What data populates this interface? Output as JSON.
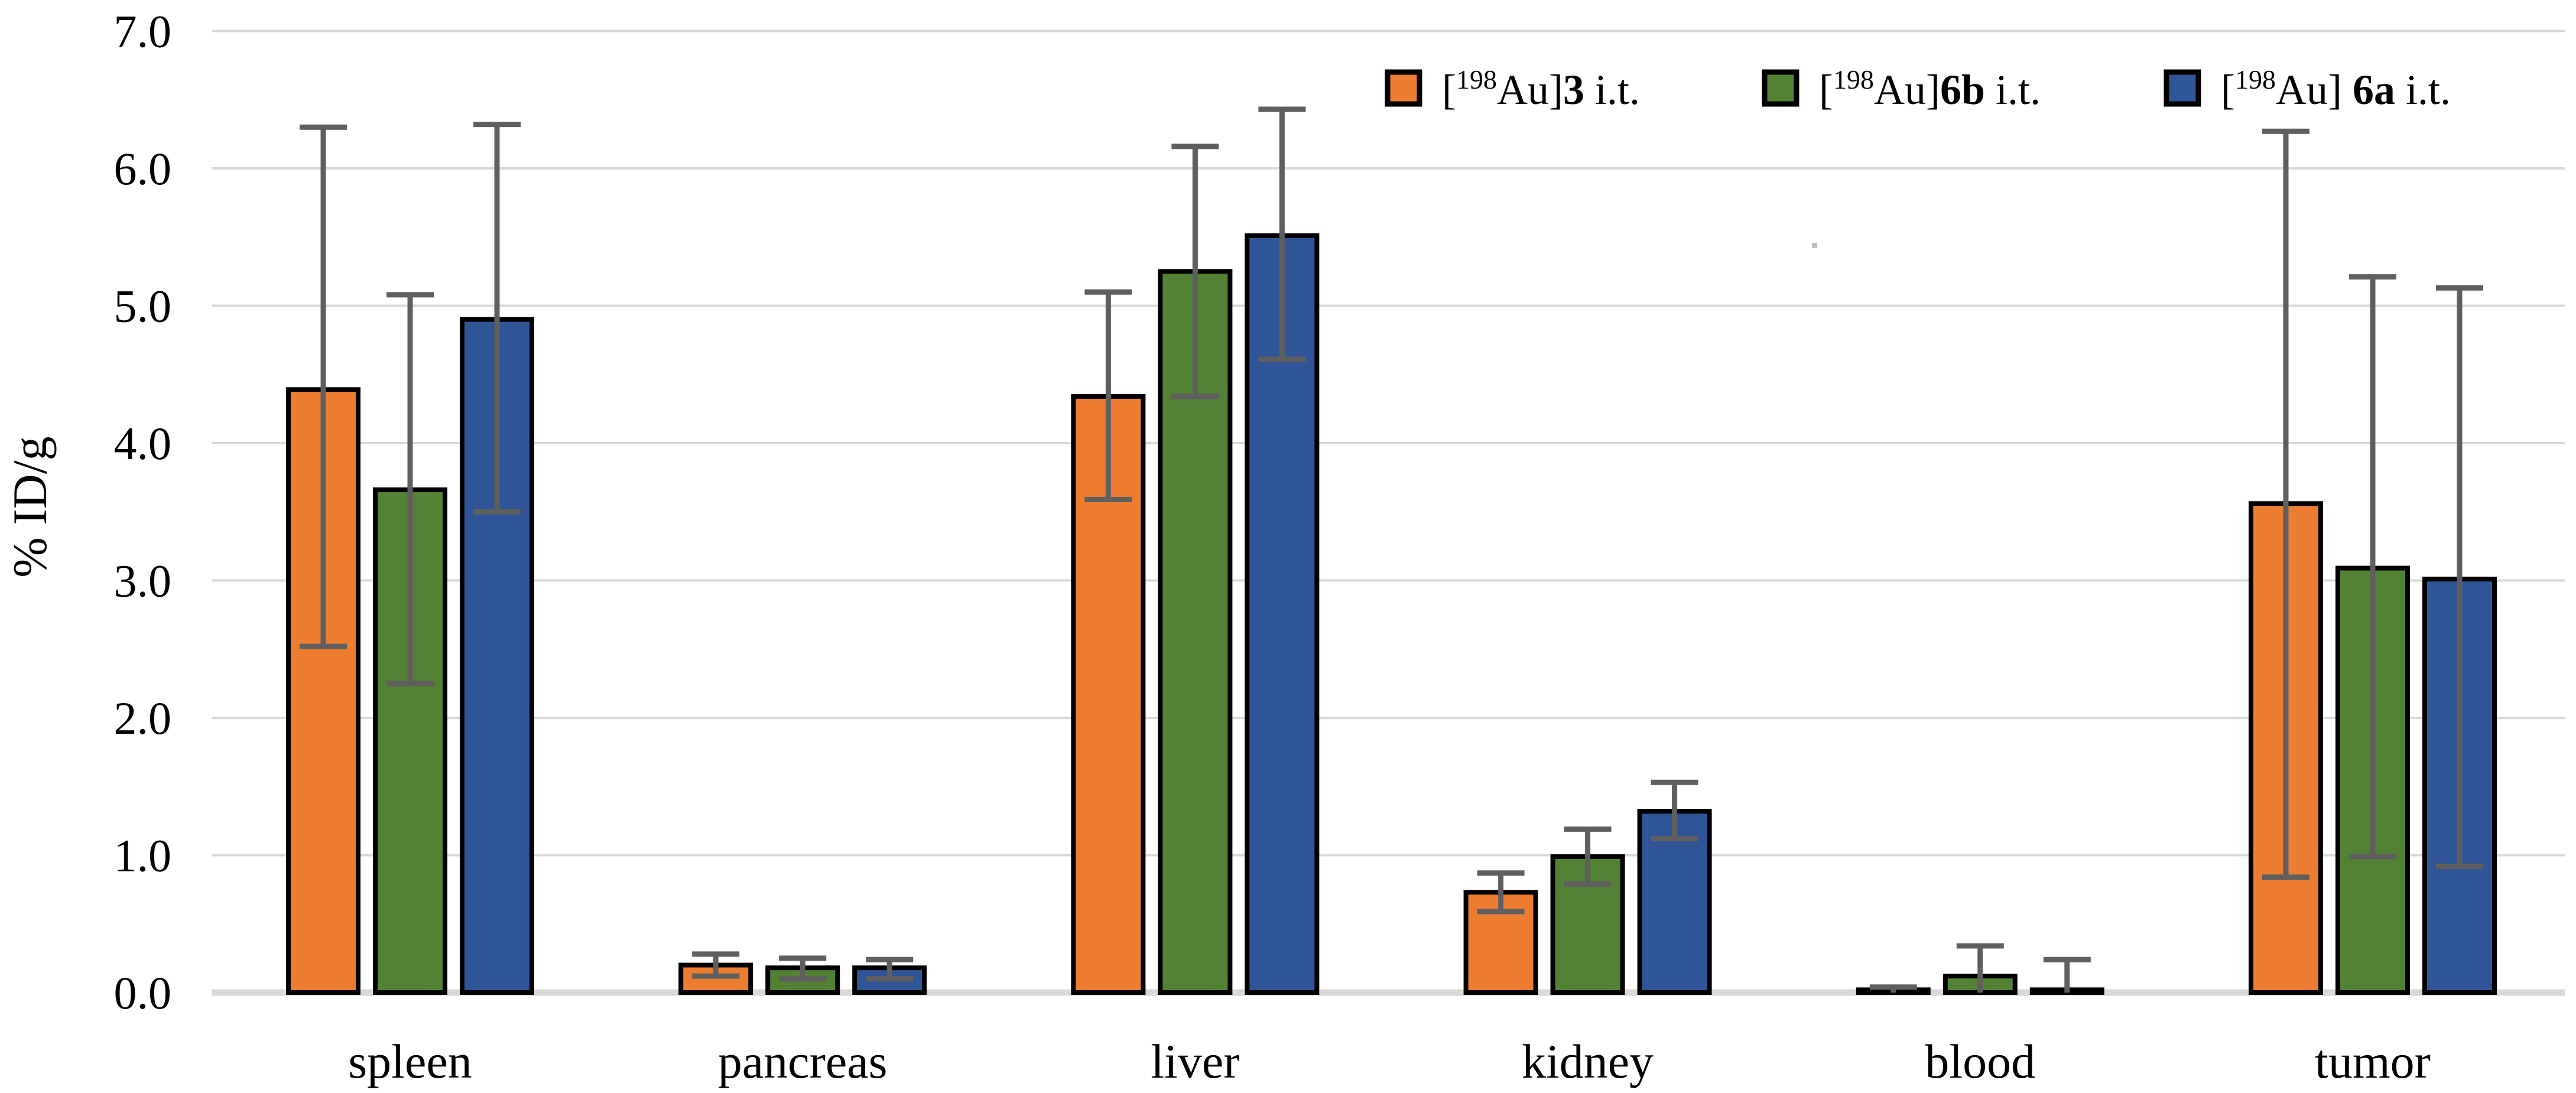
{
  "figure": {
    "description_visible_text_only": "grouped bar chart of % ID/g per organ",
    "background": "#FFFFFF"
  },
  "chart_data": {
    "type": "bar",
    "title": "",
    "xlabel": "",
    "ylabel": "% ID/g",
    "categories": [
      "spleen",
      "pancreas",
      "liver",
      "kidney",
      "blood",
      "tumor"
    ],
    "ylim": [
      0,
      7
    ],
    "yticks": [
      "0.0",
      "1.0",
      "2.0",
      "3.0",
      "4.0",
      "5.0",
      "6.0",
      "7.0"
    ],
    "grid": true,
    "legend_position": "top-right-inside",
    "series": [
      {
        "name": "[198Au]3 i.t.",
        "label_parts": {
          "pre": "[",
          "sup": "198",
          "mid": "Au]",
          "bold": "3",
          "post": " i.t."
        },
        "color": "#ED7D31",
        "values": [
          4.39,
          0.2,
          4.34,
          0.73,
          0.02,
          3.56
        ],
        "error_low": [
          2.52,
          0.12,
          3.59,
          0.59,
          0.0,
          0.84
        ],
        "error_high": [
          6.3,
          0.28,
          5.1,
          0.87,
          0.04,
          6.27
        ]
      },
      {
        "name": "[198Au]6b i.t.",
        "label_parts": {
          "pre": "[",
          "sup": "198",
          "mid": "Au]",
          "bold": "6b",
          "post": " i.t."
        },
        "color": "#548235",
        "values": [
          3.66,
          0.18,
          5.25,
          0.99,
          0.12,
          3.09
        ],
        "error_low": [
          2.25,
          0.1,
          4.34,
          0.79,
          0.0,
          0.99
        ],
        "error_high": [
          5.08,
          0.25,
          6.16,
          1.19,
          0.34,
          5.21
        ]
      },
      {
        "name": "[198Au] 6a i.t.",
        "label_parts": {
          "pre": "[",
          "sup": "198",
          "mid": "Au] ",
          "bold": "6a",
          "post": " i.t."
        },
        "color": "#2F5597",
        "values": [
          4.9,
          0.18,
          5.51,
          1.32,
          0.02,
          3.01
        ],
        "error_low": [
          3.5,
          0.1,
          4.61,
          1.12,
          0.0,
          0.92
        ],
        "error_high": [
          6.32,
          0.24,
          6.43,
          1.53,
          0.24,
          5.13
        ]
      }
    ],
    "styles": {
      "bar_border_color": "#000000",
      "error_bar_color": "#5F5F5F",
      "gridline_color": "#D9D9D9",
      "axis_line_color": "#D9D9D9",
      "text_color": "#000000",
      "stray_dot_color": "#BFBFBF",
      "background": "#FFFFFF"
    }
  }
}
